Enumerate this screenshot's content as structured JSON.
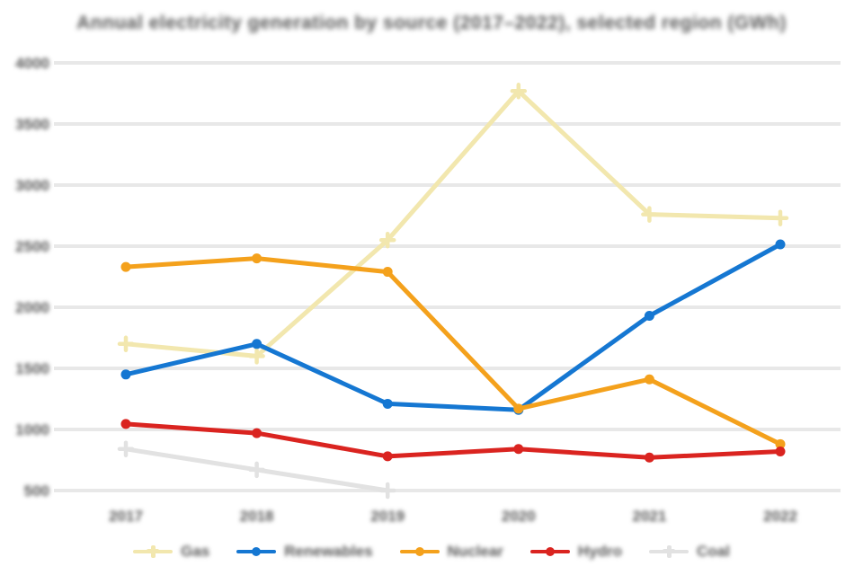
{
  "chart_data": {
    "type": "line",
    "title": "Annual electricity generation by source (2017–2022), selected region (GWh)",
    "categories": [
      "2017",
      "2018",
      "2019",
      "2020",
      "2021",
      "2022"
    ],
    "y_ticks": [
      4000,
      3500,
      3000,
      2500,
      2000,
      1500,
      1000,
      500
    ],
    "ylim": [
      500,
      4000
    ],
    "grid": "horizontal",
    "gridline_color": "#e8e8e8",
    "background_color": "#ffffff",
    "text_color": "#595959",
    "text_blurred": true,
    "legend_position": "bottom",
    "series": [
      {
        "name": "Gas",
        "color": "#f2e7ae",
        "marker": "plus",
        "values": [
          1700,
          1600,
          2550,
          3770,
          2760,
          2730
        ]
      },
      {
        "name": "Renewables",
        "color": "#1577d2",
        "marker": "circle",
        "values": [
          1450,
          1700,
          1210,
          1160,
          1930,
          2515
        ]
      },
      {
        "name": "Nuclear",
        "color": "#f4a11c",
        "marker": "circle",
        "values": [
          2330,
          2400,
          2290,
          1170,
          1410,
          880
        ]
      },
      {
        "name": "Hydro",
        "color": "#da2420",
        "marker": "circle",
        "values": [
          1045,
          970,
          780,
          840,
          770,
          820
        ]
      },
      {
        "name": "Coal",
        "color": "#e2e2e2",
        "marker": "plus",
        "values": [
          840,
          670,
          500,
          null,
          null,
          null
        ]
      }
    ]
  }
}
